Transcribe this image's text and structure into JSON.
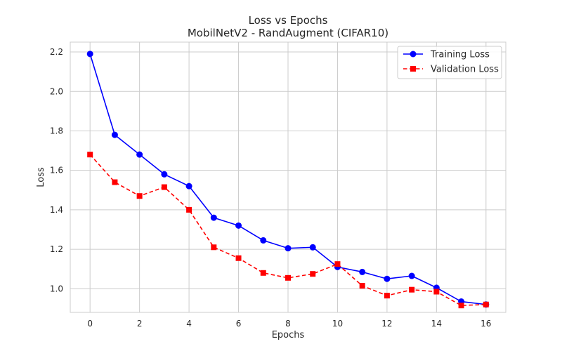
{
  "chart_data": {
    "type": "line",
    "title": "Loss vs Epochs",
    "subtitle": "MobilNetV2 - RandAugment (CIFAR10)",
    "xlabel": "Epochs",
    "ylabel": "Loss",
    "xlim": [
      -0.8,
      16.8
    ],
    "ylim": [
      0.88,
      2.25
    ],
    "x_ticks": [
      0,
      2,
      4,
      6,
      8,
      10,
      12,
      14,
      16
    ],
    "y_ticks": [
      1.0,
      1.2,
      1.4,
      1.6,
      1.8,
      2.0,
      2.2
    ],
    "x_tick_labels": [
      "0",
      "2",
      "4",
      "6",
      "8",
      "10",
      "12",
      "14",
      "16"
    ],
    "y_tick_labels": [
      "1.0",
      "1.2",
      "1.4",
      "1.6",
      "1.8",
      "2.0",
      "2.2"
    ],
    "grid": true,
    "legend_position": "top-right",
    "x": [
      0,
      1,
      2,
      3,
      4,
      5,
      6,
      7,
      8,
      9,
      10,
      11,
      12,
      13,
      14,
      15,
      16
    ],
    "series": [
      {
        "name": "Training Loss",
        "color": "#0000ff",
        "line_style": "solid",
        "marker": "circle",
        "values": [
          2.19,
          1.78,
          1.68,
          1.58,
          1.52,
          1.36,
          1.32,
          1.245,
          1.205,
          1.21,
          1.11,
          1.085,
          1.05,
          1.065,
          1.005,
          0.935,
          0.92
        ]
      },
      {
        "name": "Validation Loss",
        "color": "#ff0000",
        "line_style": "dashed",
        "marker": "square",
        "values": [
          1.68,
          1.54,
          1.47,
          1.515,
          1.4,
          1.21,
          1.155,
          1.08,
          1.055,
          1.075,
          1.125,
          1.015,
          0.965,
          0.995,
          0.985,
          0.915,
          0.92
        ]
      }
    ]
  }
}
